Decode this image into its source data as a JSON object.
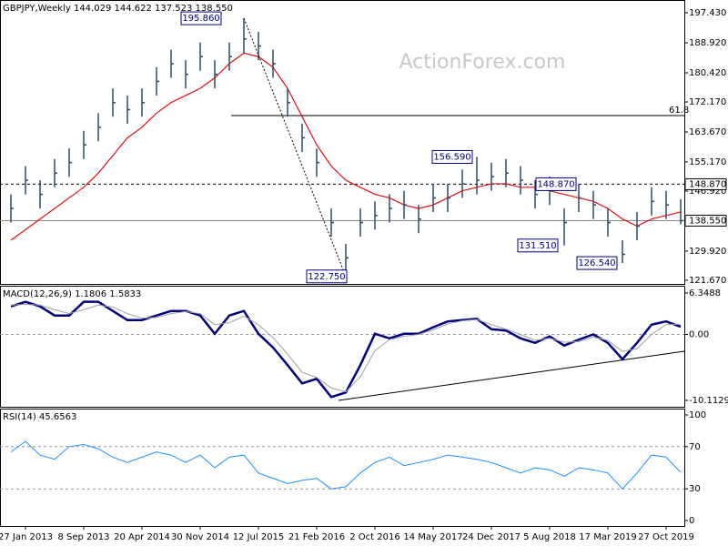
{
  "chart_data": [
    {
      "type": "ohlc",
      "title": "GBPJPY,Weekly  144.029 144.622 137.523 138.550",
      "watermark": "ActionForex.com",
      "x": [
        "2012-12-02",
        "2013-01-27",
        "2013-03-24",
        "2013-05-19",
        "2013-07-14",
        "2013-09-08",
        "2013-11-03",
        "2013-12-29",
        "2014-02-23",
        "2014-04-20",
        "2014-06-15",
        "2014-08-10",
        "2014-10-05",
        "2014-11-30",
        "2015-01-25",
        "2015-03-22",
        "2015-05-17",
        "2015-07-12",
        "2015-09-06",
        "2015-11-01",
        "2015-12-27",
        "2016-02-21",
        "2016-04-17",
        "2016-06-12",
        "2016-08-07",
        "2016-10-02",
        "2016-11-27",
        "2017-01-22",
        "2017-03-19",
        "2017-05-14",
        "2017-07-09",
        "2017-09-03",
        "2017-10-29",
        "2017-12-24",
        "2018-02-18",
        "2018-04-15",
        "2018-06-10",
        "2018-08-05",
        "2018-09-30",
        "2018-11-25",
        "2019-01-20",
        "2019-03-17",
        "2019-05-12",
        "2019-07-07",
        "2019-09-01",
        "2019-10-27",
        "2019-12-22"
      ],
      "high": [
        146,
        154,
        150,
        156,
        159,
        164,
        169,
        176,
        174,
        176,
        182,
        187,
        184,
        189,
        184,
        189,
        195.86,
        192,
        187,
        176,
        166,
        159,
        142,
        132,
        142,
        144,
        146,
        147,
        143,
        149,
        149,
        153,
        156.59,
        155,
        156,
        154,
        150,
        151,
        142,
        149,
        147,
        142,
        133,
        141,
        148,
        147,
        144.622
      ],
      "low": [
        138,
        146,
        142,
        148,
        151,
        156,
        161,
        168,
        166,
        168,
        174,
        179,
        176,
        181,
        176,
        181,
        186,
        184,
        179,
        168,
        158,
        151,
        134,
        122.75,
        134,
        136,
        138,
        139,
        135,
        141,
        141,
        145,
        146,
        147,
        148,
        146,
        142,
        143,
        131.51,
        141,
        139,
        134,
        126.54,
        133,
        140,
        139,
        137.523
      ],
      "close": [
        142,
        150,
        146,
        152,
        155,
        160,
        165,
        172,
        170,
        172,
        178,
        183,
        180,
        185,
        180,
        185,
        190,
        188,
        183,
        172,
        162,
        155,
        138,
        128,
        138,
        140,
        142,
        143,
        139,
        145,
        145,
        149,
        150,
        151,
        152,
        150,
        146,
        147,
        138,
        145,
        143,
        138,
        129,
        137,
        144,
        143,
        138.55
      ],
      "color": "#2a4a6a",
      "ma": {
        "color": "#e01010",
        "values": [
          133,
          136,
          139,
          142,
          145,
          148,
          152,
          157,
          162,
          165,
          169,
          172,
          174,
          176,
          179,
          183,
          186,
          185,
          182,
          176,
          168,
          160,
          154,
          150,
          148,
          146,
          145,
          143,
          142,
          143,
          145,
          147,
          148,
          149,
          149,
          148,
          148,
          147,
          146,
          145,
          144,
          142,
          139,
          137,
          139,
          140,
          141
        ]
      },
      "xlim": [
        "2012-10-21",
        "2020-01-05"
      ],
      "ylim": [
        120.63,
        201.04
      ],
      "yticks": [
        {
          "value": 197.43,
          "label": "197.430"
        },
        {
          "value": 188.92,
          "label": "188.920"
        },
        {
          "value": 180.42,
          "label": "180.420"
        },
        {
          "value": 172.17,
          "label": "172.170"
        },
        {
          "value": 163.67,
          "label": "163.670"
        },
        {
          "value": 155.17,
          "label": "155.170"
        },
        {
          "value": 146.92,
          "label": "146.920"
        },
        {
          "value": 129.92,
          "label": "129.920"
        },
        {
          "value": 121.67,
          "label": "121.670"
        }
      ],
      "hlines": [
        {
          "value": 148.87,
          "label": "148.870",
          "style": "dashed"
        },
        {
          "value": 138.55,
          "label": "138.550",
          "style": "solid"
        }
      ],
      "fib": {
        "value": 168.3,
        "label": "61.8",
        "from": "2015-03-29"
      },
      "annotations": [
        {
          "value": 195.86,
          "label": "195.860",
          "x": "2015-05-17"
        },
        {
          "value": 122.75,
          "label": "122.750",
          "x": "2016-06-12"
        },
        {
          "value": 156.59,
          "label": "156.590",
          "x": "2017-10-29"
        },
        {
          "value": 148.87,
          "label": "148.870",
          "x": "2018-08-05"
        },
        {
          "value": 131.51,
          "label": "131.510",
          "x": "2018-09-30"
        },
        {
          "value": 126.54,
          "label": "126.540",
          "x": "2019-05-12"
        }
      ]
    },
    {
      "type": "line",
      "title": "MACD(12,26,9) 1.1806 1.5833",
      "x": [
        "2012-12-02",
        "2013-01-27",
        "2013-03-24",
        "2013-05-19",
        "2013-07-14",
        "2013-09-08",
        "2013-11-03",
        "2013-12-29",
        "2014-02-23",
        "2014-04-20",
        "2014-06-15",
        "2014-08-10",
        "2014-10-05",
        "2014-11-30",
        "2015-01-25",
        "2015-03-22",
        "2015-05-17",
        "2015-07-12",
        "2015-09-06",
        "2015-11-01",
        "2015-12-27",
        "2016-02-21",
        "2016-04-17",
        "2016-06-12",
        "2016-08-07",
        "2016-10-02",
        "2016-11-27",
        "2017-01-22",
        "2017-03-19",
        "2017-05-14",
        "2017-07-09",
        "2017-09-03",
        "2017-10-29",
        "2017-12-24",
        "2018-02-18",
        "2018-04-15",
        "2018-06-10",
        "2018-08-05",
        "2018-09-30",
        "2018-11-25",
        "2019-01-20",
        "2019-03-17",
        "2019-05-12",
        "2019-07-07",
        "2019-09-01",
        "2019-10-27",
        "2019-12-22"
      ],
      "series": [
        {
          "color": "#00007f",
          "values": [
            4.3,
            5,
            4.3,
            2.9,
            2.9,
            5,
            5,
            3.6,
            2.2,
            2.2,
            2.9,
            3.6,
            3.6,
            2.9,
            0.1,
            2.9,
            3.6,
            0.1,
            -2,
            -4.7,
            -7.5,
            -6.8,
            -9.6,
            -8.9,
            -4.7,
            0.1,
            -0.6,
            0.1,
            0.1,
            1.1,
            2,
            2.2,
            2.4,
            0.8,
            0.6,
            -0.6,
            -1.3,
            -0.3,
            -1.7,
            -0.8,
            0,
            -1.3,
            -3.8,
            -1.3,
            1.5,
            2,
            1.1806
          ]
        },
        {
          "color": "#a0a0a0",
          "values": [
            4.5,
            4.6,
            4.5,
            3.8,
            3.2,
            3.8,
            4.5,
            4.2,
            3.2,
            2.5,
            2.6,
            3.2,
            3.5,
            3.2,
            1.5,
            1.8,
            2.8,
            1.5,
            -0.5,
            -3,
            -5.8,
            -6.6,
            -8.2,
            -8.8,
            -6.5,
            -2.5,
            -0.8,
            -0.3,
            0,
            0.7,
            1.6,
            2.1,
            2.3,
            1.5,
            0.8,
            0,
            -0.9,
            -0.6,
            -1.2,
            -1.1,
            -0.4,
            -0.9,
            -2.6,
            -2.2,
            0,
            1.5,
            1.5833
          ]
        }
      ],
      "xlim": [
        "2012-10-21",
        "2020-01-05"
      ],
      "ylim": [
        -11.09,
        7.465
      ],
      "yticks": [
        6.3488,
        {
          "value": 0,
          "label": "0.00"
        },
        -10.1129
      ],
      "levels": [
        0
      ]
    },
    {
      "type": "line",
      "title": "RSI(14) 45.6563",
      "x": [
        "2012-12-02",
        "2013-01-27",
        "2013-03-24",
        "2013-05-19",
        "2013-07-14",
        "2013-09-08",
        "2013-11-03",
        "2013-12-29",
        "2014-02-23",
        "2014-04-20",
        "2014-06-15",
        "2014-08-10",
        "2014-10-05",
        "2014-11-30",
        "2015-01-25",
        "2015-03-22",
        "2015-05-17",
        "2015-07-12",
        "2015-09-06",
        "2015-11-01",
        "2015-12-27",
        "2016-02-21",
        "2016-04-17",
        "2016-06-12",
        "2016-08-07",
        "2016-10-02",
        "2016-11-27",
        "2017-01-22",
        "2017-03-19",
        "2017-05-14",
        "2017-07-09",
        "2017-09-03",
        "2017-10-29",
        "2017-12-24",
        "2018-02-18",
        "2018-04-15",
        "2018-06-10",
        "2018-08-05",
        "2018-09-30",
        "2018-11-25",
        "2019-01-20",
        "2019-03-17",
        "2019-05-12",
        "2019-07-07",
        "2019-09-01",
        "2019-10-27",
        "2019-12-22"
      ],
      "series": [
        {
          "color": "#1e90ff",
          "values": [
            65,
            75,
            62,
            58,
            70,
            72,
            68,
            60,
            55,
            60,
            65,
            62,
            55,
            62,
            50,
            60,
            62,
            45,
            40,
            35,
            38,
            40,
            30,
            32,
            45,
            55,
            60,
            52,
            55,
            58,
            62,
            60,
            58,
            55,
            50,
            45,
            50,
            48,
            42,
            50,
            48,
            45,
            30,
            45,
            62,
            60,
            45.6563
          ]
        }
      ],
      "xlim": [
        "2012-10-21",
        "2020-01-05"
      ],
      "ylim": [
        -5.17,
        106.03
      ],
      "yticks": [
        100,
        70,
        30,
        0
      ],
      "levels": [
        70,
        30
      ],
      "xticks": [
        {
          "value": "2013-01-27",
          "label": "27 Jan 2013"
        },
        {
          "value": "2013-09-08",
          "label": "8 Sep 2013"
        },
        {
          "value": "2014-04-20",
          "label": "20 Apr 2014"
        },
        {
          "value": "2014-11-30",
          "label": "30 Nov 2014"
        },
        {
          "value": "2015-07-12",
          "label": "12 Jul 2015"
        },
        {
          "value": "2016-02-21",
          "label": "21 Feb 2016"
        },
        {
          "value": "2016-10-02",
          "label": "2 Oct 2016"
        },
        {
          "value": "2017-05-14",
          "label": "14 May 2017"
        },
        {
          "value": "2017-12-24",
          "label": "24 Dec 2017"
        },
        {
          "value": "2018-08-05",
          "label": "5 Aug 2018"
        },
        {
          "value": "2019-03-17",
          "label": "17 Mar 2019"
        },
        {
          "value": "2019-10-27",
          "label": "27 Oct 2019"
        }
      ]
    }
  ]
}
